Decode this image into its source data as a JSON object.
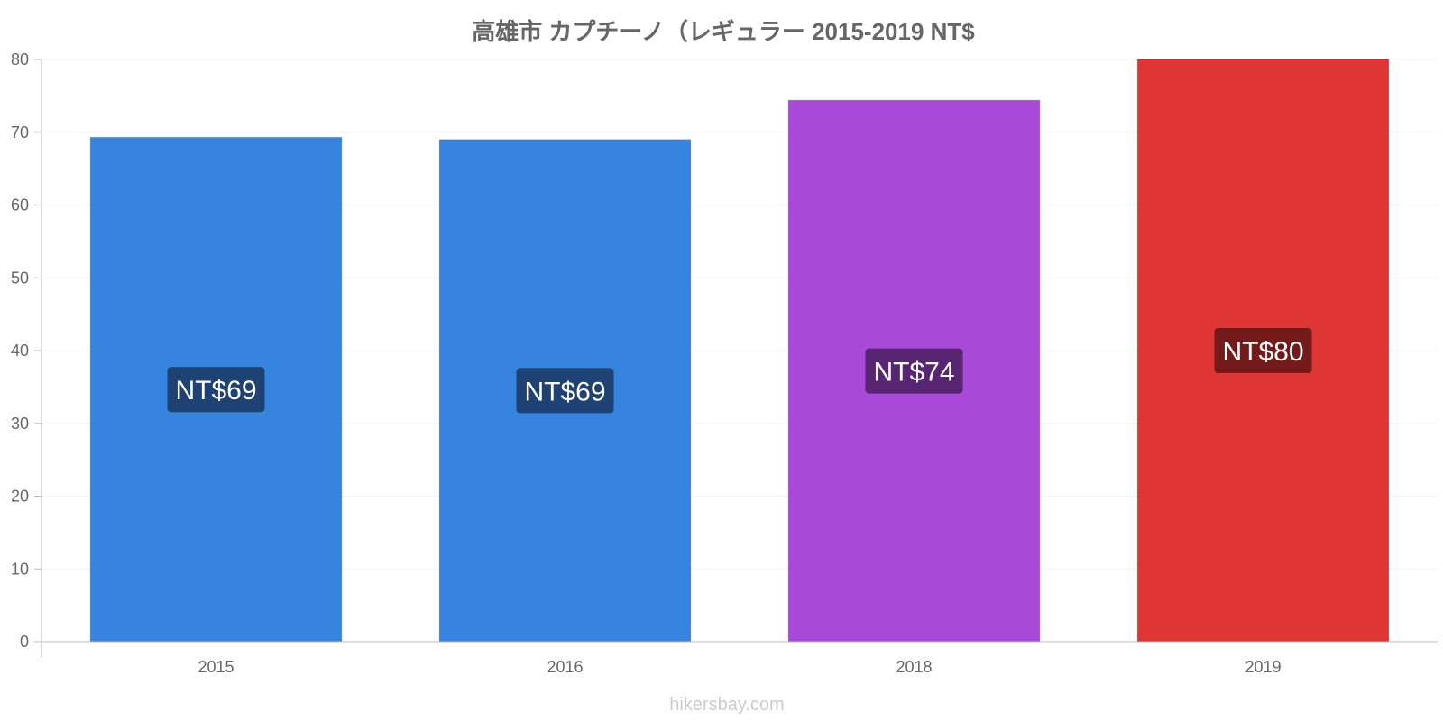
{
  "chart_data": {
    "type": "bar",
    "title": "高雄市 カプチーノ（レギュラー 2015-2019 NT$",
    "categories": [
      "2015",
      "2016",
      "2018",
      "2019"
    ],
    "values": [
      69.3,
      69.0,
      74.4,
      80.0
    ],
    "data_labels": [
      "NT$69",
      "NT$69",
      "NT$74",
      "NT$80"
    ],
    "bar_colors": [
      "#3784df",
      "#3784df",
      "#a849d9",
      "#e03535"
    ],
    "label_bg_colors": [
      "#1d4273",
      "#1d4273",
      "#572571",
      "#731b1b"
    ],
    "xlabel": "",
    "ylabel": "",
    "ylim": [
      0,
      80
    ],
    "yticks": [
      0,
      10,
      20,
      30,
      40,
      50,
      60,
      70,
      80
    ],
    "grid": true
  },
  "footer": {
    "watermark": "hikersbay.com"
  }
}
